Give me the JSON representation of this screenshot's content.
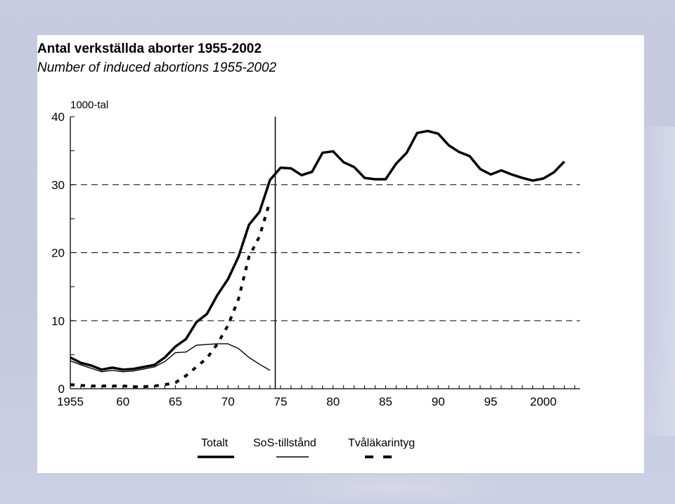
{
  "slide": {
    "title": "Antal verkställda aborter 1955-2002",
    "subtitle": "Number of induced abortions 1955-2002"
  },
  "chart_data": {
    "type": "line",
    "title": "Antal verkställda aborter 1955-2002",
    "subtitle": "Number of induced abortions 1955-2002",
    "ylabel": "1000-tal",
    "xlabel": "",
    "xlim": [
      1955,
      2003.5
    ],
    "ylim": [
      0,
      40
    ],
    "x_ticks": [
      1955,
      1960,
      1965,
      1970,
      1975,
      1980,
      1985,
      1990,
      1995,
      2000
    ],
    "x_tick_labels": [
      "1955",
      "60",
      "65",
      "70",
      "75",
      "80",
      "85",
      "90",
      "95",
      "2000"
    ],
    "y_ticks": [
      0,
      10,
      20,
      30,
      40
    ],
    "y_tick_labels": [
      "0",
      "10",
      "20",
      "30",
      "40"
    ],
    "gridlines_y": [
      10,
      20,
      30
    ],
    "grid": "horizontal dashed",
    "vertical_marker_x": 1974.5,
    "legend_position": "bottom",
    "series": [
      {
        "name": "Totalt",
        "style": "thick-solid",
        "x": [
          1955,
          1956,
          1957,
          1958,
          1959,
          1960,
          1961,
          1962,
          1963,
          1964,
          1965,
          1966,
          1967,
          1968,
          1969,
          1970,
          1971,
          1972,
          1973,
          1974,
          1975,
          1976,
          1977,
          1978,
          1979,
          1980,
          1981,
          1982,
          1983,
          1984,
          1985,
          1986,
          1987,
          1988,
          1989,
          1990,
          1991,
          1992,
          1993,
          1994,
          1995,
          1996,
          1997,
          1998,
          1999,
          2000,
          2001,
          2002
        ],
        "values": [
          4.6,
          3.8,
          3.4,
          2.8,
          3.1,
          2.8,
          2.9,
          3.2,
          3.5,
          4.6,
          6.2,
          7.3,
          9.8,
          11.0,
          13.8,
          16.1,
          19.4,
          24.1,
          26.0,
          30.7,
          32.5,
          32.4,
          31.4,
          31.9,
          34.7,
          34.9,
          33.3,
          32.6,
          31.0,
          30.8,
          30.8,
          33.1,
          34.7,
          37.6,
          37.9,
          37.5,
          35.8,
          34.8,
          34.2,
          32.3,
          31.5,
          32.1,
          31.5,
          31.0,
          30.6,
          30.9,
          31.8,
          33.4
        ]
      },
      {
        "name": "SoS-tillstånd",
        "style": "thin-solid",
        "x": [
          1955,
          1956,
          1957,
          1958,
          1959,
          1960,
          1961,
          1962,
          1963,
          1964,
          1965,
          1966,
          1967,
          1968,
          1969,
          1970,
          1971,
          1972,
          1973,
          1974
        ],
        "values": [
          4.1,
          3.5,
          3.0,
          2.5,
          2.7,
          2.5,
          2.6,
          2.9,
          3.2,
          4.0,
          5.3,
          5.4,
          6.4,
          6.5,
          6.6,
          6.6,
          5.9,
          4.6,
          3.6,
          2.7
        ]
      },
      {
        "name": "Tvåläkarintyg",
        "style": "thick-dashed",
        "x": [
          1955,
          1956,
          1957,
          1958,
          1959,
          1960,
          1961,
          1962,
          1963,
          1964,
          1965,
          1966,
          1967,
          1968,
          1969,
          1970,
          1971,
          1972,
          1973,
          1974
        ],
        "values": [
          0.6,
          0.5,
          0.4,
          0.4,
          0.4,
          0.4,
          0.3,
          0.3,
          0.4,
          0.6,
          0.9,
          1.9,
          3.2,
          4.5,
          6.6,
          9.3,
          13.2,
          19.4,
          22.4,
          27.6
        ]
      }
    ]
  }
}
